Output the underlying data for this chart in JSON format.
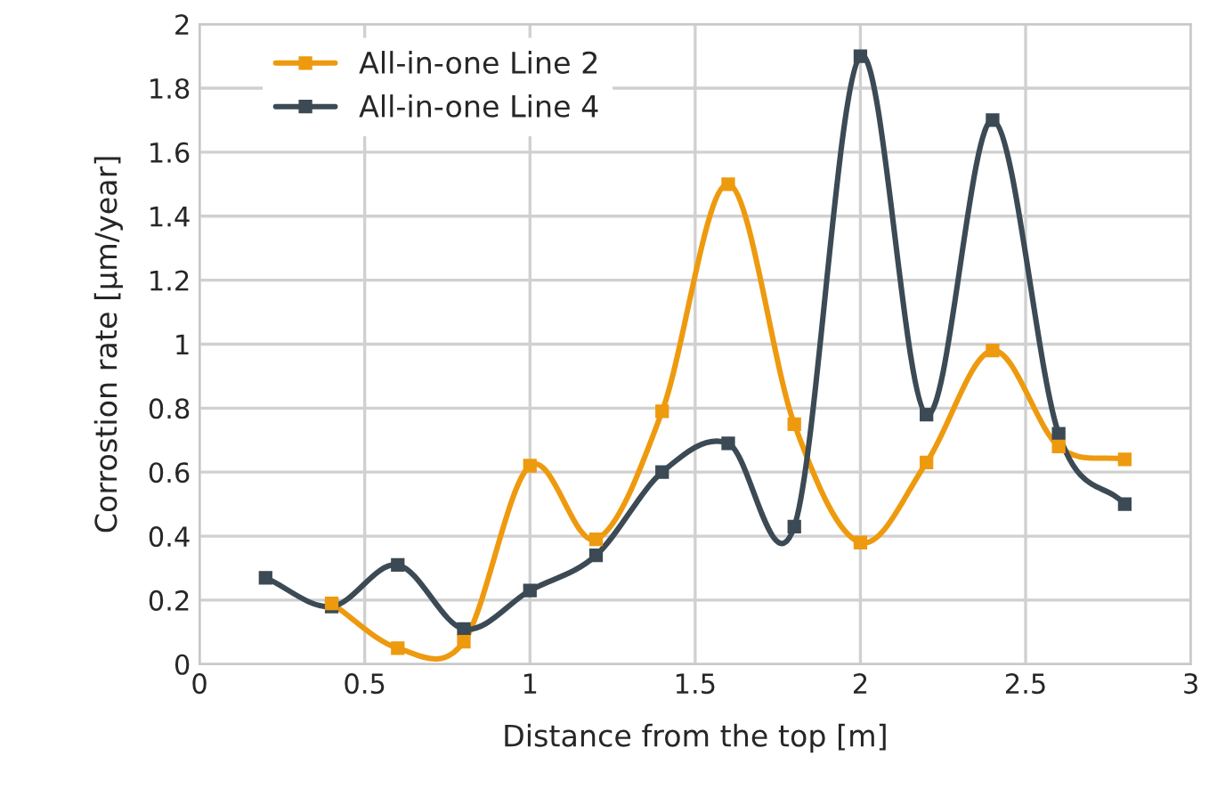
{
  "chart_data": {
    "type": "line",
    "xlabel": "Distance from the top [m]",
    "ylabel": "Corrostion rate [µm/year]",
    "series": [
      {
        "name": "All-in-one Line 2",
        "color": "#ee9a0f",
        "x": [
          0.4,
          0.6,
          0.8,
          1.0,
          1.2,
          1.4,
          1.6,
          1.8,
          2.0,
          2.2,
          2.4,
          2.6,
          2.8
        ],
        "values": [
          0.19,
          0.05,
          0.07,
          0.62,
          0.39,
          0.79,
          1.5,
          0.75,
          0.38,
          0.63,
          0.98,
          0.68,
          0.64
        ]
      },
      {
        "name": "All-in-one Line 4",
        "color": "#3b4a54",
        "x": [
          0.2,
          0.4,
          0.6,
          0.8,
          1.0,
          1.2,
          1.4,
          1.6,
          1.8,
          2.0,
          2.2,
          2.4,
          2.6,
          2.8
        ],
        "values": [
          0.27,
          0.18,
          0.31,
          0.11,
          0.23,
          0.34,
          0.6,
          0.69,
          0.43,
          1.9,
          0.78,
          1.7,
          0.72,
          0.5
        ]
      }
    ],
    "xlim": [
      0,
      3
    ],
    "xticks": [
      0,
      0.5,
      1,
      1.5,
      2,
      2.5,
      3
    ],
    "ylim": [
      0,
      2
    ],
    "yticks": [
      0,
      0.2,
      0.4,
      0.6,
      0.8,
      1,
      1.2,
      1.4,
      1.6,
      1.8,
      2
    ],
    "grid": true,
    "legend": "top left",
    "marker": "square",
    "line_style": "solid"
  }
}
